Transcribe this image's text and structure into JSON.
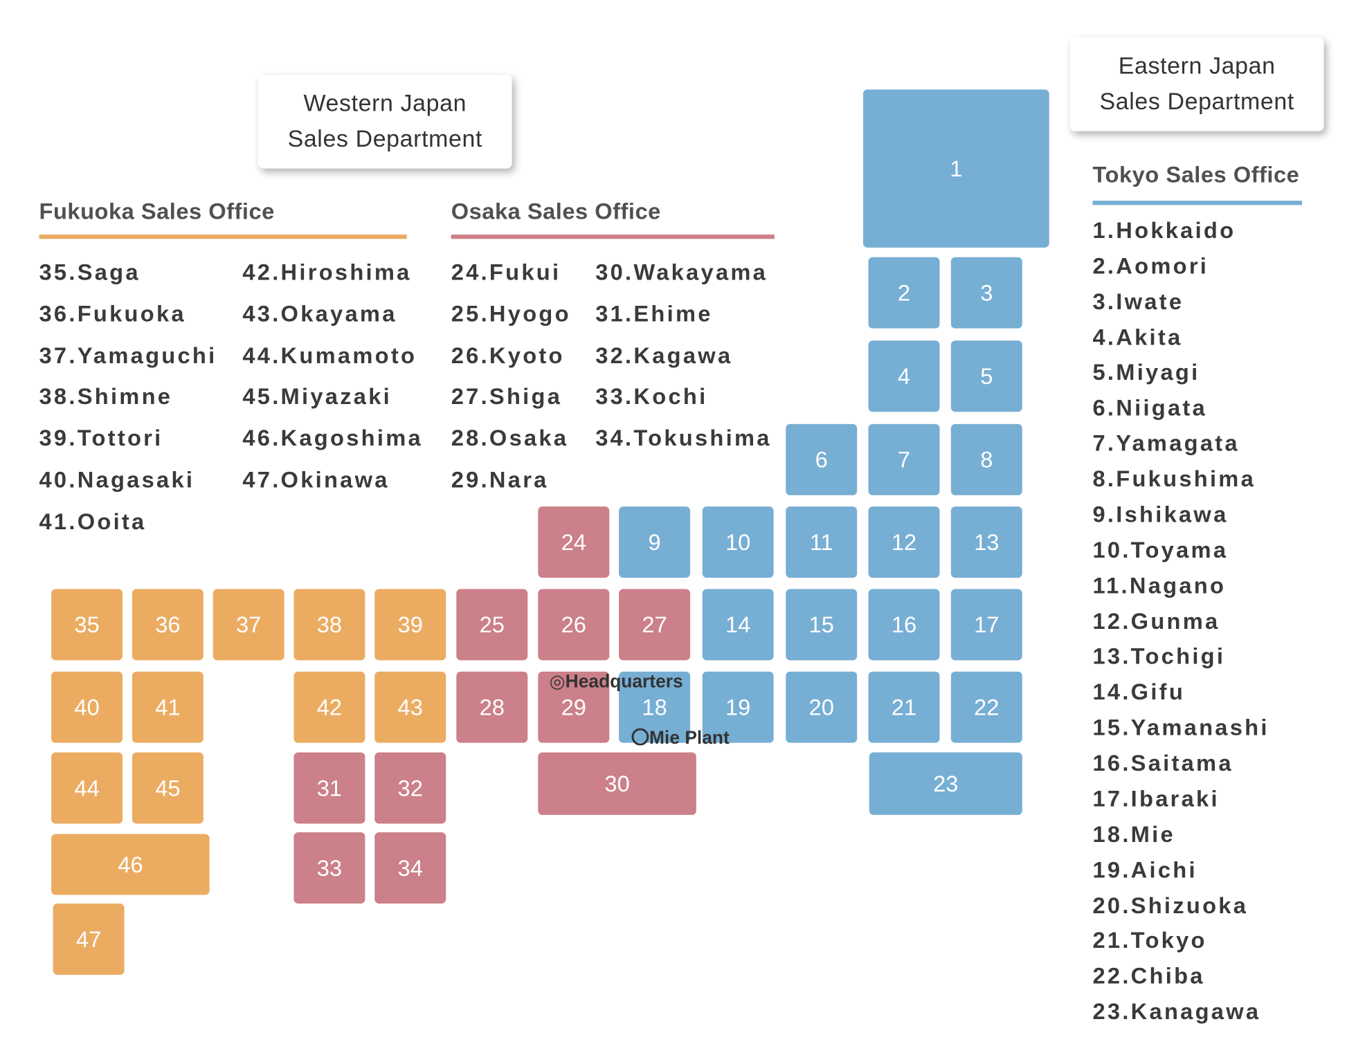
{
  "colors": {
    "west_fukuoka": "#EBAC62",
    "west_osaka": "#CC8089",
    "east_tokyo": "#77AED4"
  },
  "departments": {
    "west": {
      "line1": "Western Japan",
      "line2": "Sales Department"
    },
    "east": {
      "line1": "Eastern Japan",
      "line2": "Sales Department"
    }
  },
  "offices": {
    "fukuoka": {
      "title": "Fukuoka Sales Office",
      "prefectures": [
        "35.Saga",
        "36.Fukuoka",
        "37.Yamaguchi",
        "38.Shimne",
        "39.Tottori",
        "40.Nagasaki",
        "41.Ooita",
        "42.Hiroshima",
        "43.Okayama",
        "44.Kumamoto",
        "45.Miyazaki",
        "46.Kagoshima",
        "47.Okinawa"
      ]
    },
    "osaka": {
      "title": "Osaka Sales Office",
      "prefectures": [
        "24.Fukui",
        "25.Hyogo",
        "26.Kyoto",
        "27.Shiga",
        "28.Osaka",
        "29.Nara",
        "30.Wakayama",
        "31.Ehime",
        "32.Kagawa",
        "33.Kochi",
        "34.Tokushima"
      ]
    },
    "tokyo": {
      "title": "Tokyo Sales Office",
      "prefectures": [
        "1.Hokkaido",
        "2.Aomori",
        "3.Iwate",
        "4.Akita",
        "5.Miyagi",
        "6.Niigata",
        "7.Yamagata",
        "8.Fukushima",
        "9.Ishikawa",
        "10.Toyama",
        "11.Nagano",
        "12.Gunma",
        "13.Tochigi",
        "14.Gifu",
        "15.Yamanashi",
        "16.Saitama",
        "17.Ibaraki",
        "18.Mie",
        "19.Aichi",
        "20.Shizuoka",
        "21.Tokyo",
        "22.Chiba",
        "23.Kanagawa"
      ]
    }
  },
  "tiles": [
    {
      "label": "1",
      "office": "tokyo"
    },
    {
      "label": "2",
      "office": "tokyo"
    },
    {
      "label": "3",
      "office": "tokyo"
    },
    {
      "label": "4",
      "office": "tokyo"
    },
    {
      "label": "5",
      "office": "tokyo"
    },
    {
      "label": "6",
      "office": "tokyo"
    },
    {
      "label": "7",
      "office": "tokyo"
    },
    {
      "label": "8",
      "office": "tokyo"
    },
    {
      "label": "9",
      "office": "tokyo"
    },
    {
      "label": "10",
      "office": "tokyo"
    },
    {
      "label": "11",
      "office": "tokyo"
    },
    {
      "label": "12",
      "office": "tokyo"
    },
    {
      "label": "13",
      "office": "tokyo"
    },
    {
      "label": "14",
      "office": "tokyo"
    },
    {
      "label": "15",
      "office": "tokyo"
    },
    {
      "label": "16",
      "office": "tokyo"
    },
    {
      "label": "17",
      "office": "tokyo"
    },
    {
      "label": "18",
      "office": "tokyo"
    },
    {
      "label": "19",
      "office": "tokyo"
    },
    {
      "label": "20",
      "office": "tokyo"
    },
    {
      "label": "21",
      "office": "tokyo"
    },
    {
      "label": "22",
      "office": "tokyo"
    },
    {
      "label": "23",
      "office": "tokyo"
    },
    {
      "label": "24",
      "office": "osaka"
    },
    {
      "label": "25",
      "office": "osaka"
    },
    {
      "label": "26",
      "office": "osaka"
    },
    {
      "label": "27",
      "office": "osaka"
    },
    {
      "label": "28",
      "office": "osaka"
    },
    {
      "label": "29",
      "office": "osaka"
    },
    {
      "label": "30",
      "office": "osaka"
    },
    {
      "label": "31",
      "office": "osaka"
    },
    {
      "label": "32",
      "office": "osaka"
    },
    {
      "label": "33",
      "office": "osaka"
    },
    {
      "label": "34",
      "office": "osaka"
    },
    {
      "label": "35",
      "office": "fukuoka"
    },
    {
      "label": "36",
      "office": "fukuoka"
    },
    {
      "label": "37",
      "office": "fukuoka"
    },
    {
      "label": "38",
      "office": "fukuoka"
    },
    {
      "label": "39",
      "office": "fukuoka"
    },
    {
      "label": "40",
      "office": "fukuoka"
    },
    {
      "label": "41",
      "office": "fukuoka"
    },
    {
      "label": "42",
      "office": "fukuoka"
    },
    {
      "label": "43",
      "office": "fukuoka"
    },
    {
      "label": "44",
      "office": "fukuoka"
    },
    {
      "label": "45",
      "office": "fukuoka"
    },
    {
      "label": "46",
      "office": "fukuoka"
    },
    {
      "label": "47",
      "office": "fukuoka"
    }
  ],
  "markers": {
    "headquarters": "◎Headquarters",
    "plant": "〇Mie Plant"
  }
}
